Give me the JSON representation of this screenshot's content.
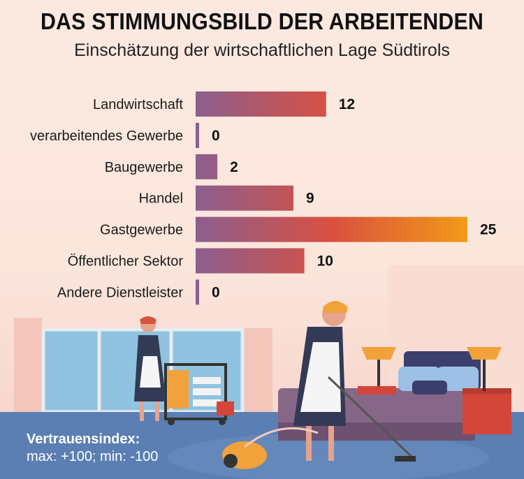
{
  "header": {
    "title": "DAS STIMMUNGSBILD DER ARBEITENDEN",
    "subtitle": "Einschätzung der wirtschaftlichen Lage Südtirols"
  },
  "footnote": {
    "title": "Vertrauensindex:",
    "text": "max: +100; min: -100"
  },
  "colors": {
    "background": "#fbe9e0",
    "floor": "#5b7fb3",
    "bar_start": "#8b5f8f",
    "bar_mid": "#d9503f",
    "bar_end": "#f29a17"
  },
  "chart_data": {
    "type": "bar",
    "orientation": "horizontal",
    "categories": [
      "Landwirtschaft",
      "verarbeitendes Gewerbe",
      "Baugewerbe",
      "Handel",
      "Gastgewerbe",
      "Öffentlicher Sektor",
      "Andere Dienstleister"
    ],
    "values": [
      12,
      0,
      2,
      9,
      25,
      10,
      0
    ],
    "value_labels": [
      "12",
      "0",
      "2",
      "9",
      "25",
      "10",
      "0"
    ],
    "xlim": [
      0,
      25
    ],
    "grid": false,
    "legend": "none"
  }
}
